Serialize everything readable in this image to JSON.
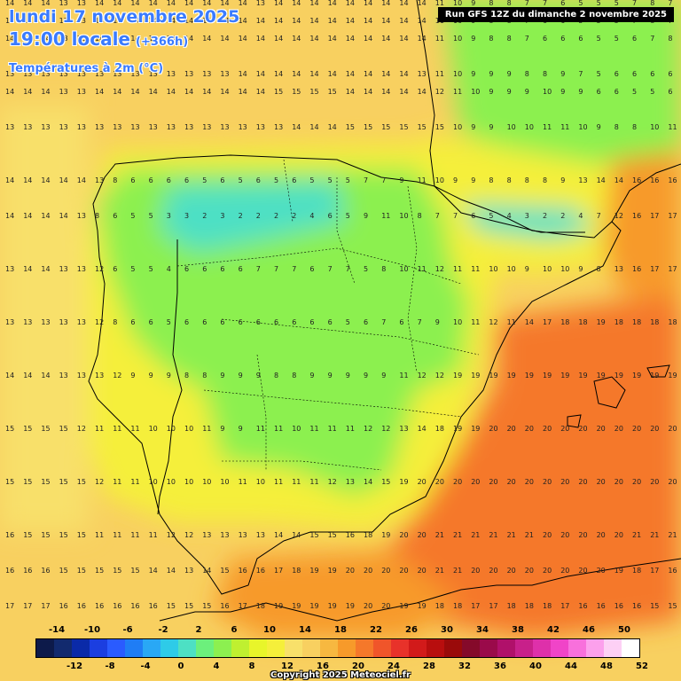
{
  "header": {
    "date_line": "lundi 17 novembre 2025",
    "time_line": "19:00 locale",
    "lead": "(+366h)",
    "field": "Températures à 2m (°C)",
    "run": "Run GFS 12Z du dimanche 2 novembre 2025"
  },
  "footer": {
    "copyright": "Copyright 2025 Meteociel.fr"
  },
  "legend": {
    "top_labels": [
      "-14",
      "-10",
      "-6",
      "-2",
      "2",
      "6",
      "10",
      "14",
      "18",
      "22",
      "26",
      "30",
      "34",
      "38",
      "42",
      "46",
      "50"
    ],
    "bottom_labels": [
      "-12",
      "-8",
      "-4",
      "0",
      "4",
      "8",
      "12",
      "16",
      "20",
      "24",
      "28",
      "32",
      "36",
      "40",
      "44",
      "48",
      "52"
    ],
    "colors": [
      "#0d1a4a",
      "#122a6e",
      "#0a2aa8",
      "#1b3ee0",
      "#2a5bff",
      "#1f7df5",
      "#29a8f5",
      "#2ecbe8",
      "#4de0c4",
      "#6cf07c",
      "#8cf050",
      "#bff030",
      "#e8f52a",
      "#f5ef3a",
      "#f8e06a",
      "#f8d060",
      "#f7b840",
      "#f79a2a",
      "#f5782a",
      "#f0552a",
      "#e8322a",
      "#d21a1a",
      "#b80e0e",
      "#9a0a0a",
      "#850a2a",
      "#9a0a4a",
      "#b0106a",
      "#c8208a",
      "#de30aa",
      "#f044c8",
      "#f870dc",
      "#fca0ec",
      "#fdd0f5",
      "#ffffff"
    ]
  },
  "grid_values": {
    "row_000": "14 14 14 13 13 14 14 14 14 14 14 14 14 14 13 14 14 14 14 14 14 14 14 14 11 10 9 8 8 7 7 6 5 5 5 7 8 7",
    "row_020": "13 13 13 13 13 14 14 14 14 14 14 14 14 14 14 14 14 14 14 14 14 14 14 14 11 10 9 8 8 7 6 6 5 5 5 7 8 7",
    "row_040": "14 14 14 13 13 14 14 14 14 14 14 14 14 14 14 14 14 14 14 14 14 14 14 14 11 10 9 8 8 7 6 6 6 5 5 6 7 8",
    "row_080": "13 13 13 13 13 13 13 13 13 13 13 13 13 14 14 14 14 14 14 14 14 14 14 13 11 10 9 9 9 8 8 9 7 5 6 6 6 6",
    "row_100": "14 14 14 13 13 14 14 14 14 14 14 14 14 14 14 15 15 15 15 14 14 14 14 14 12 11 10 9 9 9 10 9 9 6 6 5 5 6",
    "row_140": "13 13 13 13 13 13 13 13 13 13 13 13 13 13 13 13 14 14 14 15 15 15 15 15 15 10 9 9 10 10 11 11 10 9 8 8 10 11",
    "row_200": "14 14 14 14 14 13 8 6 6 6 6 5 6 5 6 5 6 5 5 5 7 7 9 11 10 9 9 8 8 8 8 9 13 14 14 16 16 16",
    "row_240": "14 14 14 14 13 8 6 5 5 3 3 2 3 2 2 2 2 4 6 5 9 11 10 8 7 7 6 5 4 3 2 2 4 7 12 16 17 17",
    "row_300": "13 14 14 13 13 12 6 5 5 4 6 6 6 6 7 7 7 6 7 7 5 8 10 11 12 11 11 10 10 9 10 10 9 8 13 16 17 17",
    "row_360": "13 13 13 13 13 12 8 6 6 5 6 6 6 6 6 6 6 6 6 5 6 7 6 7 9 10 11 12 11 14 17 18 18 19 18 18 18 18",
    "row_420": "14 14 14 13 13 13 12 9 9 9 8 8 9 9 9 8 8 9 9 9 9 9 11 12 12 19 19 19 19 19 19 19 19 19 19 19 19 19",
    "row_480": "15 15 15 15 12 11 11 11 10 10 10 11 9 9 11 11 10 11 11 11 12 12 13 14 18 19 19 20 20 20 20 20 20 20 20 20 20 20",
    "row_540": "15 15 15 15 15 12 11 11 10 10 10 10 10 11 10 11 11 11 12 13 14 15 19 20 20 20 20 20 20 20 20 20 20 20 20 20 20 20",
    "row_600": "16 15 15 15 15 11 11 11 11 12 12 13 13 13 13 14 14 15 15 16 18 19 20 20 21 21 21 21 21 21 20 20 20 20 20 21 21 21",
    "row_640": "16 16 16 15 15 15 15 15 14 14 13 14 15 16 16 17 18 19 19 20 20 20 20 20 21 21 20 20 20 20 20 20 20 20 19 18 17 16",
    "row_680": "17 17 17 16 16 16 16 16 16 15 15 15 16 17 18 19 19 19 19 19 20 20 19 19 18 18 17 17 18 18 18 17 16 16 16 16 15 15"
  }
}
